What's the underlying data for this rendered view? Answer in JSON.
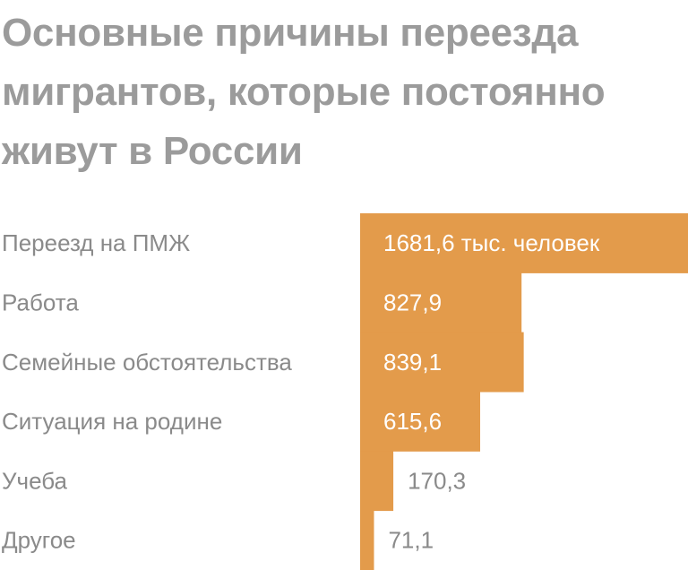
{
  "chart_data": {
    "type": "bar",
    "orientation": "horizontal",
    "title": "Основные причины переезда мигрантов, которые постоянно живут в России",
    "categories": [
      "Переезд на ПМЖ",
      "Работа",
      "Семейные обстоятельства",
      "Ситуация на родине",
      "Учеба",
      "Другое"
    ],
    "values": [
      1681.6,
      827.9,
      839.1,
      615.6,
      170.3,
      71.1
    ],
    "value_labels": [
      "1681,6 тыс. человек",
      "827,9",
      "839,1",
      "615,6",
      "170,3",
      "71,1"
    ],
    "xlim": [
      0,
      1681.6
    ],
    "grid": false,
    "legend": "none",
    "bar_color": "#e39b4b",
    "label_color": "#8a8a8a",
    "value_color_inside": "#ffffff",
    "value_color_outside": "#8a8a8a"
  }
}
